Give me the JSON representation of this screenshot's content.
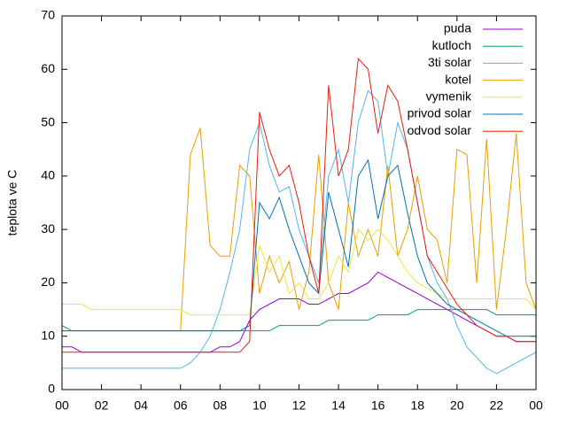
{
  "chart_data": {
    "type": "line",
    "ylabel": "teplota ve C",
    "x": [
      0,
      0.5,
      1,
      1.5,
      2,
      2.5,
      3,
      3.5,
      4,
      4.5,
      5,
      5.5,
      6,
      6.5,
      7,
      7.5,
      8,
      8.5,
      9,
      9.5,
      10,
      10.5,
      11,
      11.5,
      12,
      12.5,
      13,
      13.5,
      14,
      14.5,
      15,
      15.5,
      16,
      16.5,
      17,
      17.5,
      18,
      18.5,
      19,
      19.5,
      20,
      20.5,
      21,
      21.5,
      22,
      22.5,
      23,
      23.5,
      24
    ],
    "xlim": [
      0,
      24
    ],
    "xticks": [
      {
        "value": 0,
        "label": "00"
      },
      {
        "value": 2,
        "label": "02"
      },
      {
        "value": 4,
        "label": "04"
      },
      {
        "value": 6,
        "label": "06"
      },
      {
        "value": 8,
        "label": "08"
      },
      10,
      12,
      14,
      16,
      18,
      20,
      22,
      {
        "value": 24,
        "label": "00"
      }
    ],
    "ylim": [
      0,
      70
    ],
    "yticks": [
      0,
      10,
      20,
      30,
      40,
      50,
      60,
      70
    ],
    "legend": "top-right",
    "series": [
      {
        "name": "puda",
        "color": "#9400d3",
        "values": [
          8,
          8,
          7,
          7,
          7,
          7,
          7,
          7,
          7,
          7,
          7,
          7,
          7,
          7,
          7,
          7,
          8,
          8,
          9,
          13,
          15,
          16,
          17,
          17,
          17,
          16,
          16,
          17,
          18,
          18,
          19,
          20,
          22,
          21,
          20,
          19,
          18,
          17,
          16,
          15,
          14,
          13,
          12,
          11,
          10,
          10,
          9,
          9,
          9
        ]
      },
      {
        "name": "kutloch",
        "color": "#009e73",
        "values": [
          12,
          11,
          11,
          11,
          11,
          11,
          11,
          11,
          11,
          11,
          11,
          11,
          11,
          11,
          11,
          11,
          11,
          11,
          11,
          11,
          11,
          11,
          12,
          12,
          12,
          12,
          12,
          13,
          13,
          13,
          13,
          13,
          14,
          14,
          14,
          14,
          15,
          15,
          15,
          15,
          15,
          15,
          15,
          15,
          14,
          14,
          14,
          14,
          14
        ]
      },
      {
        "name": "3ti solar",
        "color": "#56b4e9",
        "values": [
          4,
          4,
          4,
          4,
          4,
          4,
          4,
          4,
          4,
          4,
          4,
          4,
          4,
          5,
          7,
          10,
          15,
          22,
          30,
          45,
          50,
          42,
          37,
          38,
          30,
          25,
          20,
          40,
          45,
          35,
          50,
          56,
          54,
          40,
          50,
          45,
          35,
          25,
          20,
          17,
          12,
          8,
          6,
          4,
          3,
          4,
          5,
          6,
          7
        ]
      },
      {
        "name": "kotel",
        "color": "#e69f00",
        "values": [
          11,
          11,
          11,
          11,
          11,
          11,
          11,
          11,
          11,
          11,
          11,
          11,
          11,
          44,
          49,
          27,
          25,
          25,
          42,
          40,
          18,
          25,
          20,
          24,
          15,
          22,
          44,
          20,
          15,
          35,
          25,
          30,
          25,
          42,
          25,
          30,
          40,
          30,
          28,
          20,
          45,
          44,
          20,
          47,
          15,
          30,
          48,
          20,
          15
        ]
      },
      {
        "name": "vymenik",
        "color": "#f0e442",
        "values": [
          16,
          16,
          16,
          15,
          15,
          15,
          15,
          15,
          15,
          15,
          15,
          15,
          15,
          14,
          14,
          14,
          14,
          14,
          14,
          14,
          27,
          22,
          25,
          18,
          20,
          17,
          17,
          20,
          25,
          22,
          30,
          28,
          30,
          28,
          25,
          22,
          20,
          19,
          18,
          17,
          17,
          17,
          17,
          17,
          17,
          17,
          17,
          17,
          15
        ]
      },
      {
        "name": "privod solar",
        "color": "#0072b2",
        "values": [
          11,
          11,
          11,
          11,
          11,
          11,
          11,
          11,
          11,
          11,
          11,
          11,
          11,
          11,
          11,
          11,
          11,
          11,
          11,
          12,
          35,
          32,
          36,
          30,
          25,
          20,
          18,
          37,
          30,
          23,
          40,
          43,
          32,
          40,
          42,
          33,
          25,
          20,
          18,
          16,
          15,
          14,
          13,
          12,
          11,
          10,
          10,
          10,
          10
        ]
      },
      {
        "name": "odvod solar",
        "color": "#e51e10",
        "values": [
          7,
          7,
          7,
          7,
          7,
          7,
          7,
          7,
          7,
          7,
          7,
          7,
          7,
          7,
          7,
          7,
          7,
          7,
          7,
          9,
          52,
          45,
          40,
          42,
          35,
          25,
          18,
          57,
          40,
          45,
          62,
          60,
          48,
          57,
          54,
          45,
          35,
          25,
          22,
          19,
          16,
          14,
          12,
          11,
          10,
          10,
          9,
          9,
          9
        ]
      }
    ]
  }
}
